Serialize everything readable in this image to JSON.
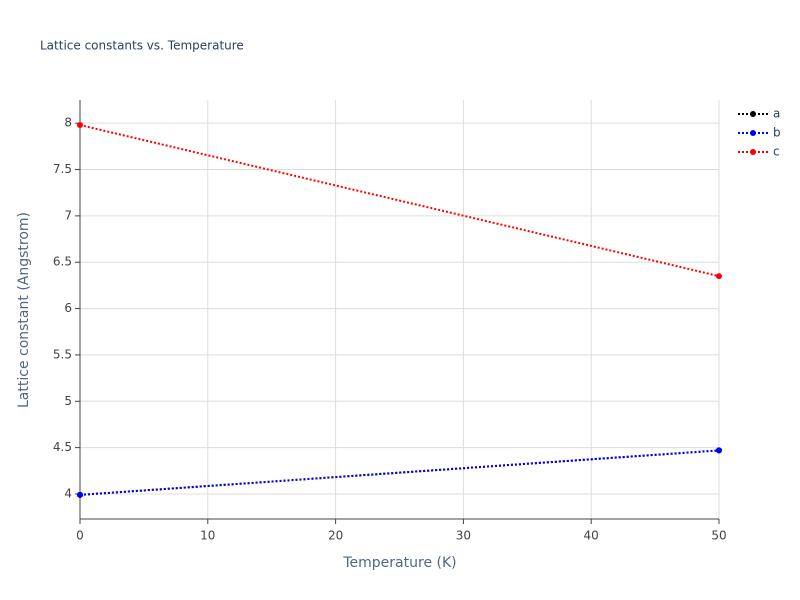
{
  "chart_data": {
    "type": "line",
    "title": "Lattice constants vs. Temperature",
    "x_label": "Temperature (K)",
    "y_label": "Lattice constant (Angstrom)",
    "x": [
      0,
      50
    ],
    "series": [
      {
        "name": "a",
        "color": "#000000",
        "values": [
          3.99,
          4.47
        ]
      },
      {
        "name": "b",
        "color": "#0000ff",
        "values": [
          3.99,
          4.47
        ]
      },
      {
        "name": "c",
        "color": "#ff0000",
        "values": [
          7.98,
          6.35
        ]
      }
    ],
    "xlim": [
      0,
      50
    ],
    "xticks": [
      0,
      10,
      20,
      30,
      40,
      50
    ],
    "ylim": [
      3.73,
      8.25
    ],
    "yticks": [
      4,
      4.5,
      5,
      5.5,
      6,
      6.5,
      7,
      7.5,
      8
    ],
    "grid": true,
    "legend": "top-right"
  }
}
